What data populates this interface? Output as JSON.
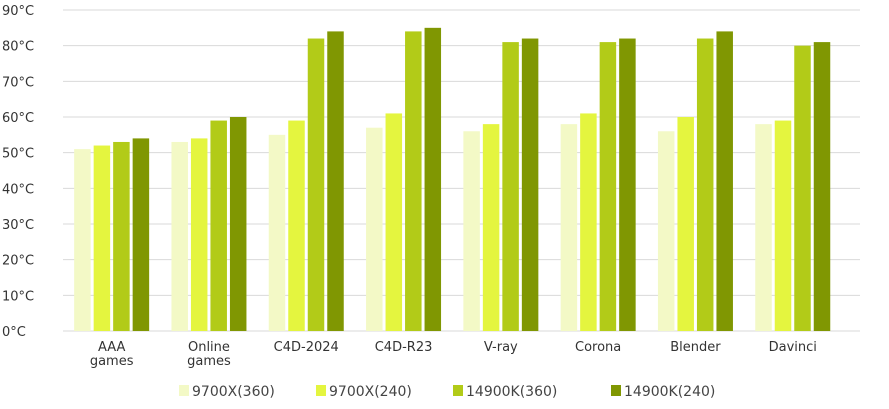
{
  "chart_data": {
    "type": "bar",
    "title": "",
    "xlabel": "",
    "ylabel": "",
    "categories": [
      [
        "AAA",
        "games"
      ],
      [
        "Online",
        "games"
      ],
      [
        "C4D-2024"
      ],
      [
        "C4D-R23"
      ],
      [
        "V-ray"
      ],
      [
        "Corona"
      ],
      [
        "Blender"
      ],
      [
        "Davinci"
      ]
    ],
    "series": [
      {
        "name": "9700X(360)",
        "color": "#f3f9c6",
        "values": [
          51,
          53,
          55,
          57,
          56,
          58,
          56,
          58
        ]
      },
      {
        "name": "9700X(240)",
        "color": "#e4f53f",
        "values": [
          52,
          54,
          59,
          61,
          58,
          61,
          60,
          59
        ]
      },
      {
        "name": "14900K(360)",
        "color": "#b2cb18",
        "values": [
          53,
          59,
          82,
          84,
          81,
          81,
          82,
          80
        ]
      },
      {
        "name": "14900K(240)",
        "color": "#809702",
        "values": [
          54,
          60,
          84,
          85,
          82,
          82,
          84,
          81
        ]
      }
    ],
    "ylim": [
      0,
      90
    ],
    "yticks": [
      "0°C",
      "10°C",
      "20°C",
      "30°C",
      "40°C",
      "50°C",
      "60°C",
      "70°C",
      "80°C",
      "90°C"
    ],
    "grid": true,
    "legend_position": "bottom"
  }
}
